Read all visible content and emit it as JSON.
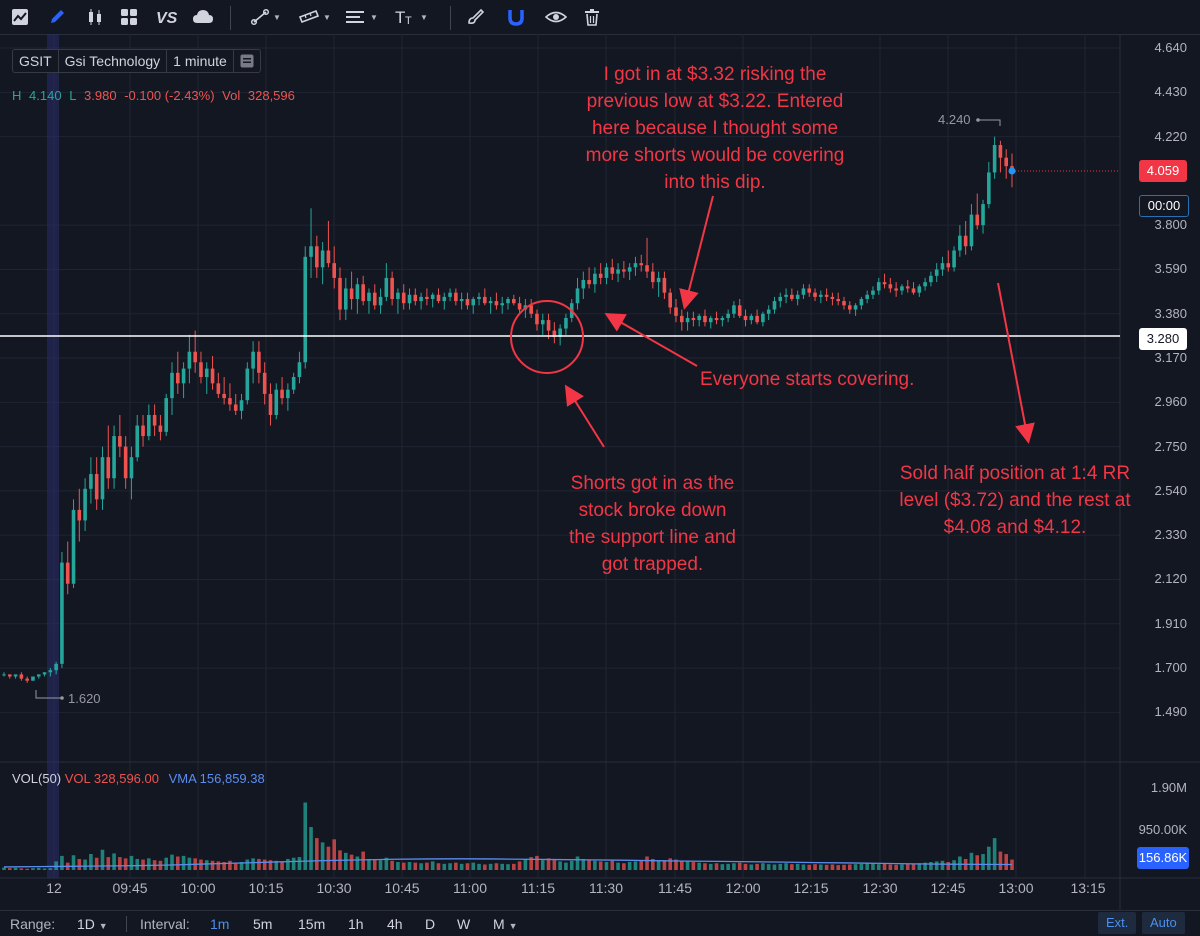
{
  "toolbar": {
    "tools": [
      "chart-type-icon",
      "pencil-icon",
      "candles-icon",
      "layout-grid-icon",
      "compare-vs-icon",
      "cloud-icon",
      "trendline-icon",
      "ruler-icon",
      "lines-icon",
      "text-icon",
      "brush-icon",
      "magnet-icon",
      "eye-icon",
      "trash-icon"
    ]
  },
  "symbol": {
    "ticker": "GSIT",
    "name": "Gsi Technology",
    "interval": "1 minute"
  },
  "ohlc": {
    "h_label": "H",
    "h": "4.140",
    "l_label": "L",
    "l": "3.980",
    "change": "-0.100 (-2.43%)",
    "vol_label": "Vol",
    "vol": "328,596"
  },
  "price_axis": [
    "4.640",
    "4.430",
    "4.220",
    "3.800",
    "3.590",
    "3.380",
    "3.170",
    "2.960",
    "2.750",
    "2.540",
    "2.330",
    "2.120",
    "1.910",
    "1.700",
    "1.490"
  ],
  "price_tags": {
    "last": "4.059",
    "countdown": "00:00",
    "hline": "3.280",
    "high_marker": "4.240",
    "low_marker": "1.620"
  },
  "volume": {
    "legend_title": "VOL(50)",
    "vol_text": "VOL 328,596.00",
    "vma_text": "VMA 156,859.38",
    "axis": [
      "1.90M",
      "950.00K"
    ],
    "vma_tag": "156.86K"
  },
  "time_axis": [
    "12",
    "09:45",
    "10:00",
    "10:15",
    "10:30",
    "10:45",
    "11:00",
    "11:15",
    "11:30",
    "11:45",
    "12:00",
    "12:15",
    "12:30",
    "12:45",
    "13:00",
    "13:15"
  ],
  "annotations": {
    "entry": [
      "I got in at $3.32 risking the",
      "previous low at $3.22. Entered",
      "here because I thought some",
      "more shorts would be covering",
      "into this dip."
    ],
    "covering": "Everyone starts covering.",
    "shorts": [
      "Shorts got in as the",
      "stock broke down",
      "the support line and",
      "got trapped."
    ],
    "sold": [
      "Sold half position at 1:4 RR",
      "level ($3.72) and the rest at",
      "$4.08 and $4.12."
    ]
  },
  "bottom": {
    "range_label": "Range:",
    "range_value": "1D",
    "interval_label": "Interval:",
    "intervals": [
      "1m",
      "5m",
      "15m",
      "1h",
      "4h",
      "D",
      "W",
      "M"
    ],
    "ext": "Ext.",
    "auto": "Auto"
  },
  "colors": {
    "up": "#26a69a",
    "down": "#ef5350",
    "annotation": "#f23645",
    "background": "#131722",
    "vma": "#2962ff"
  },
  "chart_data": {
    "type": "candlestick",
    "interval": "1 minute",
    "ylim": [
      1.4,
      4.7
    ],
    "candles": [
      [
        1.67,
        1.68,
        1.66,
        1.67
      ],
      [
        1.67,
        1.67,
        1.65,
        1.66
      ],
      [
        1.66,
        1.67,
        1.65,
        1.67
      ],
      [
        1.67,
        1.68,
        1.64,
        1.65
      ],
      [
        1.65,
        1.66,
        1.63,
        1.64
      ],
      [
        1.64,
        1.66,
        1.64,
        1.66
      ],
      [
        1.66,
        1.67,
        1.65,
        1.67
      ],
      [
        1.67,
        1.68,
        1.66,
        1.68
      ],
      [
        1.68,
        1.7,
        1.66,
        1.69
      ],
      [
        1.69,
        1.73,
        1.67,
        1.72
      ],
      [
        1.72,
        2.25,
        1.7,
        2.2
      ],
      [
        2.2,
        2.3,
        2.05,
        2.1
      ],
      [
        2.1,
        2.5,
        2.08,
        2.45
      ],
      [
        2.45,
        2.55,
        2.3,
        2.4
      ],
      [
        2.4,
        2.6,
        2.35,
        2.55
      ],
      [
        2.55,
        2.7,
        2.48,
        2.62
      ],
      [
        2.62,
        2.7,
        2.45,
        2.5
      ],
      [
        2.5,
        2.75,
        2.45,
        2.7
      ],
      [
        2.7,
        2.85,
        2.55,
        2.6
      ],
      [
        2.6,
        2.85,
        2.55,
        2.8
      ],
      [
        2.8,
        2.9,
        2.7,
        2.75
      ],
      [
        2.75,
        2.8,
        2.55,
        2.6
      ],
      [
        2.6,
        2.75,
        2.5,
        2.7
      ],
      [
        2.7,
        2.9,
        2.68,
        2.85
      ],
      [
        2.85,
        2.9,
        2.75,
        2.8
      ],
      [
        2.8,
        2.95,
        2.78,
        2.9
      ],
      [
        2.9,
        2.95,
        2.8,
        2.85
      ],
      [
        2.85,
        2.9,
        2.78,
        2.82
      ],
      [
        2.82,
        3.0,
        2.8,
        2.98
      ],
      [
        2.98,
        3.15,
        2.9,
        3.1
      ],
      [
        3.1,
        3.2,
        3.0,
        3.05
      ],
      [
        3.05,
        3.15,
        2.98,
        3.12
      ],
      [
        3.12,
        3.28,
        3.05,
        3.2
      ],
      [
        3.2,
        3.3,
        3.1,
        3.15
      ],
      [
        3.15,
        3.2,
        3.05,
        3.08
      ],
      [
        3.08,
        3.15,
        3.0,
        3.12
      ],
      [
        3.12,
        3.18,
        3.02,
        3.05
      ],
      [
        3.05,
        3.1,
        2.98,
        3.0
      ],
      [
        3.0,
        3.08,
        2.95,
        2.98
      ],
      [
        2.98,
        3.05,
        2.92,
        2.95
      ],
      [
        2.95,
        3.0,
        2.9,
        2.92
      ],
      [
        2.92,
        3.0,
        2.88,
        2.97
      ],
      [
        2.97,
        3.15,
        2.95,
        3.12
      ],
      [
        3.12,
        3.25,
        3.05,
        3.2
      ],
      [
        3.2,
        3.25,
        3.05,
        3.1
      ],
      [
        3.1,
        3.15,
        2.95,
        3.0
      ],
      [
        3.0,
        3.05,
        2.85,
        2.9
      ],
      [
        2.9,
        3.05,
        2.88,
        3.02
      ],
      [
        3.02,
        3.08,
        2.95,
        2.98
      ],
      [
        2.98,
        3.05,
        2.92,
        3.02
      ],
      [
        3.02,
        3.1,
        3.0,
        3.08
      ],
      [
        3.08,
        3.2,
        3.05,
        3.15
      ],
      [
        3.15,
        3.7,
        3.12,
        3.65
      ],
      [
        3.65,
        3.88,
        3.55,
        3.7
      ],
      [
        3.7,
        3.75,
        3.55,
        3.6
      ],
      [
        3.6,
        3.72,
        3.52,
        3.68
      ],
      [
        3.68,
        3.82,
        3.6,
        3.62
      ],
      [
        3.62,
        3.7,
        3.5,
        3.55
      ],
      [
        3.55,
        3.6,
        3.35,
        3.4
      ],
      [
        3.4,
        3.55,
        3.35,
        3.5
      ],
      [
        3.5,
        3.58,
        3.4,
        3.45
      ],
      [
        3.45,
        3.55,
        3.38,
        3.52
      ],
      [
        3.52,
        3.56,
        3.42,
        3.44
      ],
      [
        3.44,
        3.5,
        3.38,
        3.48
      ],
      [
        3.48,
        3.52,
        3.4,
        3.42
      ],
      [
        3.42,
        3.5,
        3.38,
        3.46
      ],
      [
        3.46,
        3.62,
        3.44,
        3.55
      ],
      [
        3.55,
        3.58,
        3.42,
        3.45
      ],
      [
        3.45,
        3.5,
        3.38,
        3.48
      ],
      [
        3.48,
        3.52,
        3.4,
        3.43
      ],
      [
        3.43,
        3.5,
        3.4,
        3.47
      ],
      [
        3.47,
        3.5,
        3.42,
        3.44
      ],
      [
        3.44,
        3.48,
        3.4,
        3.46
      ],
      [
        3.46,
        3.5,
        3.42,
        3.45
      ],
      [
        3.45,
        3.48,
        3.41,
        3.47
      ],
      [
        3.47,
        3.5,
        3.43,
        3.44
      ],
      [
        3.44,
        3.48,
        3.4,
        3.46
      ],
      [
        3.46,
        3.5,
        3.44,
        3.48
      ],
      [
        3.48,
        3.5,
        3.42,
        3.44
      ],
      [
        3.44,
        3.48,
        3.4,
        3.45
      ],
      [
        3.45,
        3.48,
        3.4,
        3.42
      ],
      [
        3.42,
        3.46,
        3.38,
        3.45
      ],
      [
        3.45,
        3.48,
        3.42,
        3.46
      ],
      [
        3.46,
        3.5,
        3.42,
        3.43
      ],
      [
        3.43,
        3.46,
        3.38,
        3.44
      ],
      [
        3.44,
        3.48,
        3.4,
        3.42
      ],
      [
        3.42,
        3.46,
        3.38,
        3.43
      ],
      [
        3.43,
        3.46,
        3.4,
        3.45
      ],
      [
        3.45,
        3.47,
        3.42,
        3.43
      ],
      [
        3.43,
        3.46,
        3.38,
        3.4
      ],
      [
        3.4,
        3.45,
        3.36,
        3.42
      ],
      [
        3.42,
        3.45,
        3.36,
        3.38
      ],
      [
        3.38,
        3.4,
        3.3,
        3.33
      ],
      [
        3.33,
        3.38,
        3.28,
        3.35
      ],
      [
        3.35,
        3.38,
        3.26,
        3.3
      ],
      [
        3.3,
        3.34,
        3.24,
        3.27
      ],
      [
        3.27,
        3.33,
        3.23,
        3.31
      ],
      [
        3.31,
        3.38,
        3.28,
        3.36
      ],
      [
        3.36,
        3.45,
        3.34,
        3.43
      ],
      [
        3.43,
        3.55,
        3.4,
        3.5
      ],
      [
        3.5,
        3.58,
        3.45,
        3.54
      ],
      [
        3.54,
        3.6,
        3.5,
        3.52
      ],
      [
        3.52,
        3.6,
        3.48,
        3.57
      ],
      [
        3.57,
        3.62,
        3.52,
        3.55
      ],
      [
        3.55,
        3.62,
        3.52,
        3.6
      ],
      [
        3.6,
        3.64,
        3.54,
        3.57
      ],
      [
        3.57,
        3.62,
        3.53,
        3.59
      ],
      [
        3.59,
        3.63,
        3.55,
        3.58
      ],
      [
        3.58,
        3.62,
        3.54,
        3.6
      ],
      [
        3.6,
        3.65,
        3.56,
        3.62
      ],
      [
        3.62,
        3.66,
        3.58,
        3.61
      ],
      [
        3.61,
        3.74,
        3.55,
        3.58
      ],
      [
        3.58,
        3.62,
        3.5,
        3.53
      ],
      [
        3.53,
        3.58,
        3.46,
        3.55
      ],
      [
        3.55,
        3.58,
        3.45,
        3.48
      ],
      [
        3.48,
        3.5,
        3.38,
        3.41
      ],
      [
        3.41,
        3.45,
        3.34,
        3.37
      ],
      [
        3.37,
        3.4,
        3.3,
        3.34
      ],
      [
        3.34,
        3.39,
        3.3,
        3.36
      ],
      [
        3.36,
        3.39,
        3.32,
        3.35
      ],
      [
        3.35,
        3.38,
        3.32,
        3.37
      ],
      [
        3.37,
        3.4,
        3.32,
        3.34
      ],
      [
        3.34,
        3.37,
        3.31,
        3.36
      ],
      [
        3.36,
        3.39,
        3.33,
        3.35
      ],
      [
        3.35,
        3.37,
        3.32,
        3.36
      ],
      [
        3.36,
        3.4,
        3.34,
        3.38
      ],
      [
        3.38,
        3.44,
        3.36,
        3.42
      ],
      [
        3.42,
        3.45,
        3.36,
        3.37
      ],
      [
        3.37,
        3.4,
        3.32,
        3.35
      ],
      [
        3.35,
        3.38,
        3.33,
        3.37
      ],
      [
        3.37,
        3.4,
        3.33,
        3.34
      ],
      [
        3.34,
        3.39,
        3.32,
        3.38
      ],
      [
        3.38,
        3.42,
        3.35,
        3.4
      ],
      [
        3.4,
        3.46,
        3.38,
        3.44
      ],
      [
        3.44,
        3.48,
        3.41,
        3.46
      ],
      [
        3.46,
        3.5,
        3.43,
        3.47
      ],
      [
        3.47,
        3.5,
        3.44,
        3.45
      ],
      [
        3.45,
        3.49,
        3.42,
        3.47
      ],
      [
        3.47,
        3.52,
        3.45,
        3.5
      ],
      [
        3.5,
        3.52,
        3.46,
        3.48
      ],
      [
        3.48,
        3.5,
        3.44,
        3.46
      ],
      [
        3.46,
        3.49,
        3.43,
        3.47
      ],
      [
        3.47,
        3.5,
        3.44,
        3.46
      ],
      [
        3.46,
        3.48,
        3.42,
        3.45
      ],
      [
        3.45,
        3.48,
        3.42,
        3.44
      ],
      [
        3.44,
        3.46,
        3.4,
        3.42
      ],
      [
        3.42,
        3.44,
        3.38,
        3.4
      ],
      [
        3.4,
        3.43,
        3.37,
        3.42
      ],
      [
        3.42,
        3.46,
        3.4,
        3.45
      ],
      [
        3.45,
        3.49,
        3.43,
        3.47
      ],
      [
        3.47,
        3.51,
        3.45,
        3.49
      ],
      [
        3.49,
        3.55,
        3.47,
        3.53
      ],
      [
        3.53,
        3.57,
        3.5,
        3.52
      ],
      [
        3.52,
        3.55,
        3.48,
        3.5
      ],
      [
        3.5,
        3.53,
        3.46,
        3.49
      ],
      [
        3.49,
        3.52,
        3.47,
        3.51
      ],
      [
        3.51,
        3.54,
        3.48,
        3.5
      ],
      [
        3.5,
        3.53,
        3.47,
        3.48
      ],
      [
        3.48,
        3.52,
        3.46,
        3.51
      ],
      [
        3.51,
        3.55,
        3.49,
        3.53
      ],
      [
        3.53,
        3.58,
        3.51,
        3.56
      ],
      [
        3.56,
        3.62,
        3.53,
        3.59
      ],
      [
        3.59,
        3.65,
        3.56,
        3.62
      ],
      [
        3.62,
        3.68,
        3.58,
        3.6
      ],
      [
        3.6,
        3.7,
        3.58,
        3.68
      ],
      [
        3.68,
        3.8,
        3.65,
        3.75
      ],
      [
        3.75,
        3.82,
        3.66,
        3.7
      ],
      [
        3.7,
        3.9,
        3.68,
        3.85
      ],
      [
        3.85,
        3.95,
        3.78,
        3.8
      ],
      [
        3.8,
        3.92,
        3.76,
        3.9
      ],
      [
        3.9,
        4.1,
        3.88,
        4.05
      ],
      [
        4.05,
        4.22,
        4.02,
        4.18
      ],
      [
        4.18,
        4.2,
        4.05,
        4.12
      ],
      [
        4.12,
        4.16,
        4.02,
        4.08
      ],
      [
        4.08,
        4.14,
        3.98,
        4.059
      ]
    ],
    "volume": [
      40,
      30,
      35,
      25,
      20,
      30,
      35,
      25,
      30,
      140,
      230,
      120,
      240,
      180,
      170,
      260,
      200,
      330,
      210,
      270,
      210,
      190,
      230,
      180,
      170,
      190,
      160,
      150,
      200,
      250,
      220,
      230,
      200,
      190,
      170,
      160,
      150,
      140,
      130,
      150,
      120,
      130,
      170,
      190,
      180,
      170,
      160,
      150,
      140,
      180,
      200,
      210,
      1100,
      700,
      520,
      450,
      380,
      500,
      320,
      280,
      250,
      220,
      300,
      180,
      170,
      160,
      200,
      150,
      130,
      120,
      130,
      120,
      110,
      120,
      140,
      110,
      100,
      110,
      120,
      100,
      110,
      120,
      100,
      90,
      100,
      110,
      100,
      95,
      100,
      140,
      180,
      210,
      230,
      160,
      190,
      170,
      140,
      120,
      150,
      220,
      180,
      160,
      150,
      140,
      130,
      150,
      120,
      110,
      130,
      140,
      150,
      220,
      180,
      150,
      160,
      190,
      170,
      140,
      150,
      130,
      120,
      110,
      100,
      110,
      95,
      100,
      110,
      120,
      100,
      90,
      100,
      110,
      95,
      90,
      100,
      110,
      95,
      100,
      90,
      85,
      95,
      90,
      85,
      90,
      80,
      85,
      90,
      95,
      100,
      110,
      110,
      95,
      100,
      90,
      85,
      90,
      95,
      100,
      110,
      120,
      130,
      140,
      150,
      130,
      160,
      220,
      180,
      280,
      240,
      260,
      380,
      520,
      300,
      260,
      170
    ],
    "vma": [
      50,
      55,
      60,
      65,
      70,
      80,
      95,
      110,
      125,
      140,
      155,
      165,
      175,
      180,
      182,
      180,
      175,
      170,
      165,
      160,
      152,
      145,
      140,
      135,
      128,
      120,
      115,
      108,
      100,
      95,
      92,
      90
    ]
  }
}
